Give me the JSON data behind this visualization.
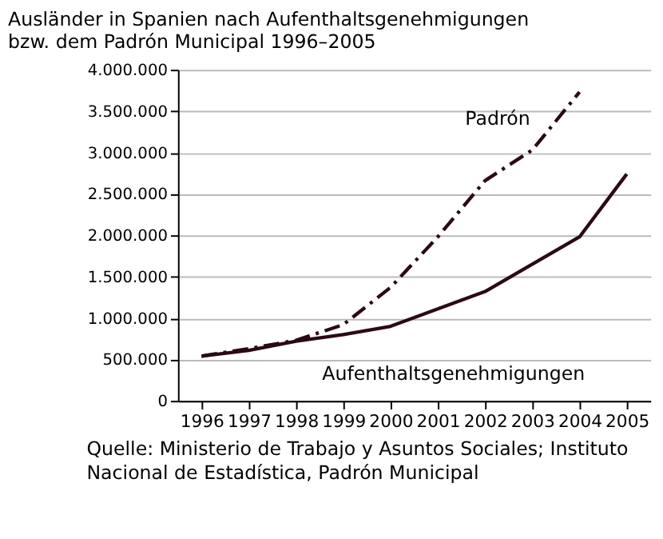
{
  "chart_data": {
    "type": "line",
    "title": [
      "Ausländer in Spanien nach Aufenthaltsgenehmigungen",
      "bzw. dem Padrón Municipal 1996–2005"
    ],
    "categories": [
      "1996",
      "1997",
      "1998",
      "1999",
      "2000",
      "2001",
      "2002",
      "2003",
      "2004",
      "2005"
    ],
    "series": [
      {
        "name": "Padrón",
        "color": "#2a0a14",
        "line_style": "dashed",
        "values": [
          540000,
          630000,
          730000,
          920000,
          1370000,
          1980000,
          2660000,
          3030000,
          3730000,
          null
        ]
      },
      {
        "name": "Aufenthaltsgenehmigungen",
        "color": "#2a0a14",
        "line_style": "solid",
        "values": [
          540000,
          610000,
          720000,
          800000,
          900000,
          1110000,
          1320000,
          1650000,
          1980000,
          2740000
        ]
      }
    ],
    "ylim": [
      0,
      4000000
    ],
    "yticks": [
      {
        "value": 0,
        "label": "0"
      },
      {
        "value": 500000,
        "label": "500.000"
      },
      {
        "value": 1000000,
        "label": "1.000.000"
      },
      {
        "value": 1500000,
        "label": "1.500.000"
      },
      {
        "value": 2000000,
        "label": "2.000.000"
      },
      {
        "value": 2500000,
        "label": "2.500.000"
      },
      {
        "value": 3000000,
        "label": "3.000.000"
      },
      {
        "value": 3500000,
        "label": "3.500.000"
      },
      {
        "value": 4000000,
        "label": "4.000.000"
      }
    ],
    "grid": "y",
    "legend": false,
    "marker": "none",
    "annotations": [
      "Quelle: Ministerio de Trabajo y Asuntos Sociales; Instituto",
      "Nacional de Estadística, Padrón Municipal"
    ]
  }
}
